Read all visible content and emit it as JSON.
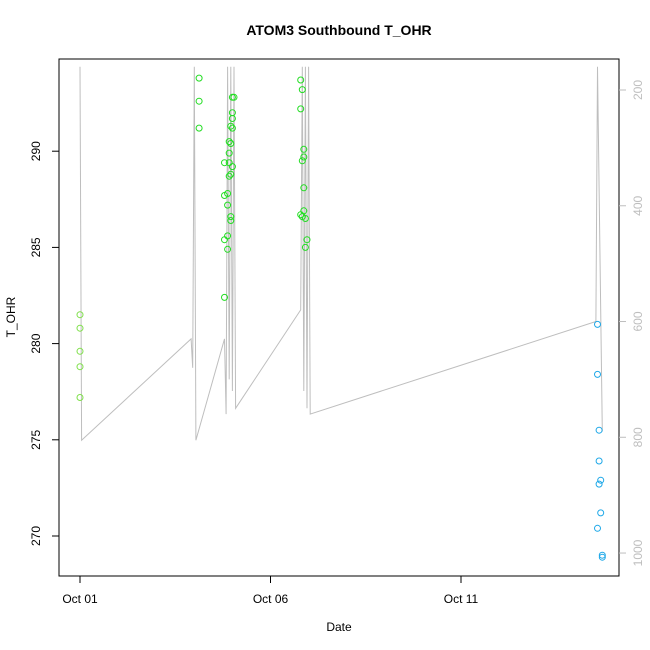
{
  "chart_data": {
    "type": "scatter",
    "title": "ATOM3 Southbound T_OHR",
    "xlabel": "Date",
    "ylabel": "T_OHR",
    "x_ticks": [
      "Oct 01",
      "Oct 06",
      "Oct 11"
    ],
    "y_ticks": [
      270,
      275,
      280,
      285,
      290
    ],
    "ylim": [
      268,
      295
    ],
    "y2_ticks": [
      200,
      400,
      600,
      800,
      1000
    ],
    "y2lim": [
      1040,
      160
    ],
    "y2_note": "secondary axis (grey, reversed) for the grey pressure-profile line",
    "grid": false,
    "colors": {
      "green": "#22dd22",
      "lime": "#7fe04a",
      "blue": "#1ea8e8",
      "profile": "#bebebe"
    },
    "series": [
      {
        "color": "lime",
        "points": [
          [
            "Oct 01",
            281.5
          ],
          [
            "Oct 01",
            280.8
          ],
          [
            "Oct 01",
            279.6
          ],
          [
            "Oct 01",
            278.8
          ],
          [
            "Oct 01",
            277.2
          ]
        ]
      },
      {
        "color": "green",
        "points": [
          [
            "Oct 04 03:00",
            293.8
          ],
          [
            "Oct 04 03:00",
            292.6
          ],
          [
            "Oct 04 03:00",
            291.2
          ],
          [
            "Oct 04 19:00",
            289.4
          ],
          [
            "Oct 04 19:00",
            287.7
          ],
          [
            "Oct 04 19:00",
            285.4
          ],
          [
            "Oct 04 19:00",
            282.4
          ],
          [
            "Oct 04 21:00",
            287.8
          ],
          [
            "Oct 04 21:00",
            287.2
          ],
          [
            "Oct 04 21:00",
            285.6
          ],
          [
            "Oct 04 21:00",
            284.9
          ],
          [
            "Oct 04 22:00",
            290.5
          ],
          [
            "Oct 04 22:00",
            289.9
          ],
          [
            "Oct 04 22:00",
            289.4
          ],
          [
            "Oct 04 22:00",
            288.7
          ],
          [
            "Oct 04 23:00",
            291.3
          ],
          [
            "Oct 04 23:00",
            290.4
          ],
          [
            "Oct 04 23:00",
            288.8
          ],
          [
            "Oct 04 23:00",
            286.6
          ],
          [
            "Oct 04 23:00",
            286.4
          ],
          [
            "Oct 05 00:00",
            292.8
          ],
          [
            "Oct 05 00:00",
            292.0
          ],
          [
            "Oct 05 00:00",
            291.7
          ],
          [
            "Oct 05 00:00",
            291.2
          ],
          [
            "Oct 05 00:00",
            289.2
          ],
          [
            "Oct 05 01:00",
            292.8
          ],
          [
            "Oct 06 19:00",
            293.7
          ],
          [
            "Oct 06 19:00",
            292.2
          ],
          [
            "Oct 06 19:00",
            286.7
          ],
          [
            "Oct 06 20:00",
            293.2
          ],
          [
            "Oct 06 20:00",
            289.5
          ],
          [
            "Oct 06 20:00",
            286.6
          ],
          [
            "Oct 06 21:00",
            290.1
          ],
          [
            "Oct 06 21:00",
            289.7
          ],
          [
            "Oct 06 21:00",
            288.1
          ],
          [
            "Oct 06 21:00",
            286.9
          ],
          [
            "Oct 06 22:00",
            286.5
          ],
          [
            "Oct 06 22:00",
            285.0
          ],
          [
            "Oct 06 23:00",
            285.4
          ]
        ]
      },
      {
        "color": "blue",
        "points": [
          [
            "Oct 14 14:00",
            281.0
          ],
          [
            "Oct 14 14:00",
            278.4
          ],
          [
            "Oct 14 15:00",
            275.5
          ],
          [
            "Oct 14 15:00",
            273.9
          ],
          [
            "Oct 14 15:00",
            272.7
          ],
          [
            "Oct 14 16:00",
            272.9
          ],
          [
            "Oct 14 16:00",
            271.2
          ],
          [
            "Oct 14 14:00",
            270.4
          ],
          [
            "Oct 14 17:00",
            269.0
          ],
          [
            "Oct 14 17:00",
            268.9
          ]
        ]
      }
    ],
    "profile_line": [
      [
        "Oct 01 00:00",
        160
      ],
      [
        "Oct 01 01:00",
        805
      ],
      [
        "Oct 03 22:00",
        630
      ],
      [
        "Oct 03 23:00",
        680
      ],
      [
        "Oct 04 00:00",
        160
      ],
      [
        "Oct 04 01:00",
        805
      ],
      [
        "Oct 04 19:00",
        630
      ],
      [
        "Oct 04 20:00",
        760
      ],
      [
        "Oct 04 21:00",
        160
      ],
      [
        "Oct 04 22:00",
        700
      ],
      [
        "Oct 04 23:00",
        160
      ],
      [
        "Oct 05 00:00",
        720
      ],
      [
        "Oct 05 01:00",
        160
      ],
      [
        "Oct 05 02:00",
        750
      ],
      [
        "Oct 06 19:00",
        580
      ],
      [
        "Oct 06 20:00",
        160
      ],
      [
        "Oct 06 21:00",
        720
      ],
      [
        "Oct 06 22:00",
        160
      ],
      [
        "Oct 06 23:00",
        750
      ],
      [
        "Oct 07 00:00",
        160
      ],
      [
        "Oct 07 01:00",
        760
      ],
      [
        "Oct 14 13:00",
        600
      ],
      [
        "Oct 14 14:00",
        160
      ],
      [
        "Oct 14 17:00",
        790
      ]
    ]
  }
}
